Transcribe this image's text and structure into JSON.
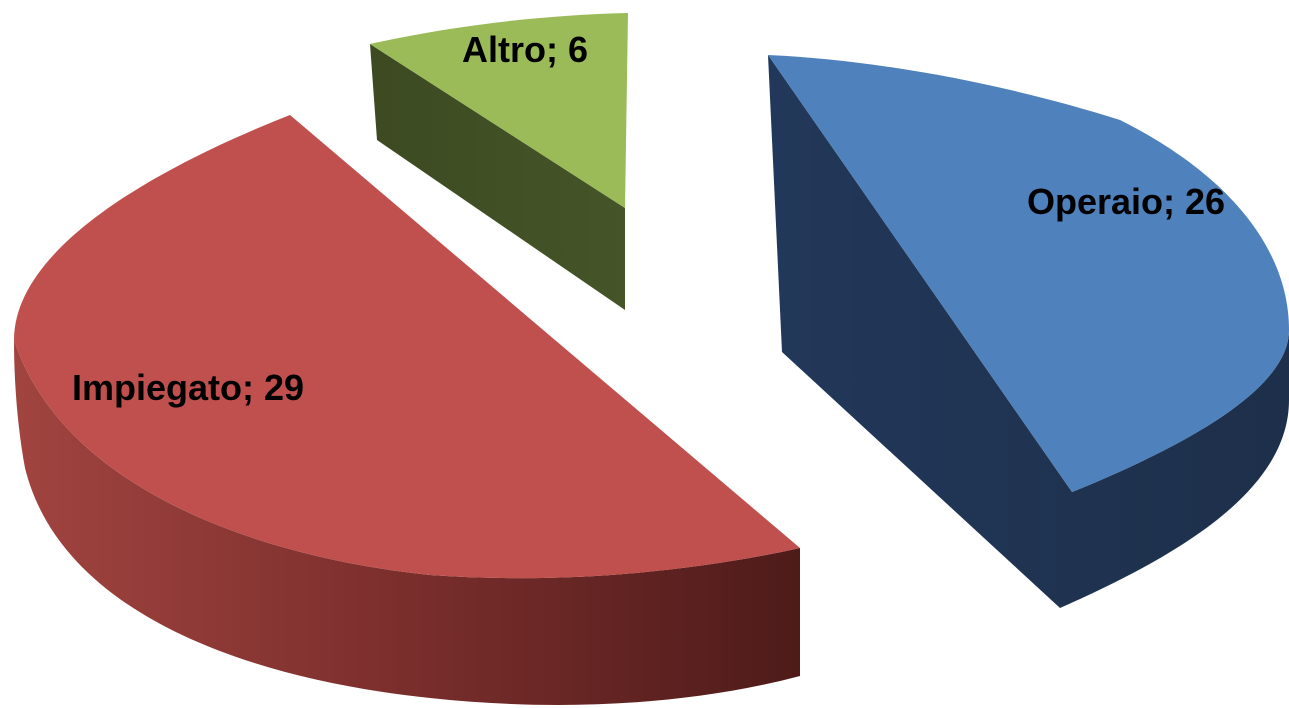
{
  "chart_data": {
    "type": "pie",
    "style": "3d-exploded",
    "legend": "none",
    "slices": [
      {
        "category": "Operaio",
        "value": 26,
        "label": "Operaio; 26",
        "color": "#4F81BD",
        "side_color": "#1F324E"
      },
      {
        "category": "Impiegato",
        "value": 29,
        "label": "Impiegato; 29",
        "color": "#C0504D",
        "side_color": "#7A2E2C"
      },
      {
        "category": "Altro",
        "value": 6,
        "label": "Altro; 6",
        "color": "#9BBB59",
        "side_color": "#3E4C24"
      }
    ]
  }
}
